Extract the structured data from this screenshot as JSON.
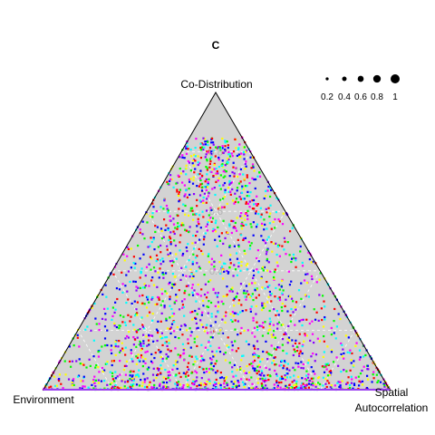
{
  "chart_data": {
    "type": "ternary-scatter",
    "title": "C",
    "vertices": {
      "top": "Co-Distribution",
      "left": "Environment",
      "right_line1": "Spatial",
      "right_line2": "Autocorrelation"
    },
    "grid": true,
    "grid_levels": [
      0.2,
      0.4,
      0.6,
      0.8
    ],
    "grid_labels": [
      "0.2",
      "0.4",
      "0.6",
      "0.8"
    ],
    "legend_position": "top-right",
    "size_legend": [
      {
        "label": "0.2",
        "value": 0.2
      },
      {
        "label": "0.4",
        "value": 0.4
      },
      {
        "label": "0.6",
        "value": 0.6
      },
      {
        "label": "0.8",
        "value": 0.8
      },
      {
        "label": "1",
        "value": 1.0
      }
    ],
    "colors": [
      "#ff0000",
      "#00ff00",
      "#0000ff",
      "#ff00ff",
      "#ffff00",
      "#00ffff",
      "#8800ff"
    ],
    "background_fill": "#d3d3d3",
    "points_summary": {
      "count": 2400,
      "marker_size_value": 0.2,
      "codistribution_range": [
        0.0,
        0.85
      ],
      "environment_range": [
        0.0,
        1.0
      ],
      "spatial_range": [
        0.0,
        1.0
      ]
    }
  }
}
